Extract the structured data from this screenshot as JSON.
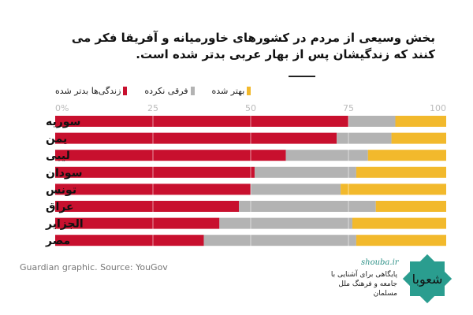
{
  "chart_data": {
    "type": "bar",
    "orientation": "horizontal",
    "stacked": true,
    "title": "بخش وسیعی از مردم در کشورهای خاورمیانه و آفریقا فکر می کنند که زندگیشان پس از بهار عربی بدتر شده است.",
    "categories": [
      "سوریه",
      "یمن",
      "لیبی",
      "سودان",
      "تونس",
      "عراق",
      "الجزایر",
      "مصر"
    ],
    "series": [
      {
        "name": "زندگی‌ها بدتر شده",
        "color": "#c8102e",
        "values": [
          75,
          72,
          59,
          51,
          50,
          47,
          42,
          38
        ]
      },
      {
        "name": "فرقی نکرده",
        "color": "#b3b3b3",
        "values": [
          12,
          14,
          21,
          26,
          23,
          35,
          34,
          39
        ]
      },
      {
        "name": "بهتر شده",
        "color": "#f2b92c",
        "values": [
          13,
          14,
          20,
          23,
          27,
          18,
          24,
          23
        ]
      }
    ],
    "xlim": [
      0,
      100
    ],
    "xticks": [
      "0%",
      "25",
      "50",
      "75",
      "100"
    ],
    "grid": true,
    "legend": "top-left",
    "source": "Guardian graphic. Source: YouGov"
  },
  "branding": {
    "site": "shouba.ir",
    "tagline_1": "پایگاهی برای آشنایی با",
    "tagline_2": "جامعه و فرهنگ ملل مسلمان",
    "logo_text": "شعوبا"
  }
}
